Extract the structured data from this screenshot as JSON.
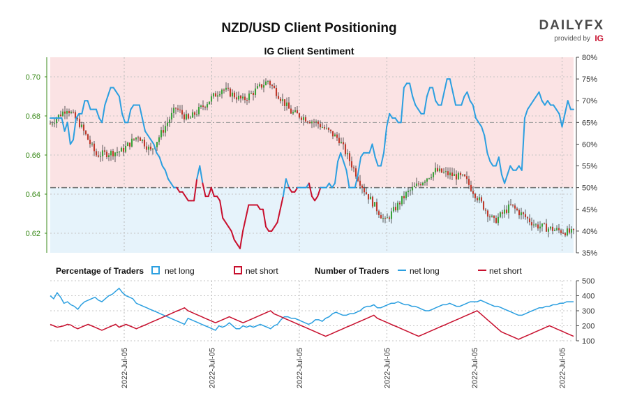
{
  "chart_data": {
    "type": "candlestick+line",
    "title": "NZD/USD Client Positioning",
    "subtitle": "IG Client Sentiment",
    "brand": {
      "name": "DAILYFX",
      "tagline": "provided by",
      "logo": "IG"
    },
    "colors": {
      "long": "#2b9fe0",
      "short": "#c8102e",
      "candle_up": "#3aa33a",
      "candle_down": "#c0392b",
      "long_zone": "#e6f3fb",
      "short_zone": "#fbe3e4",
      "left_axis": "#3a8a1a"
    },
    "x_tick_labels": [
      "2022-Jul-05",
      "2022-Jul-05",
      "2022-Jul-05",
      "2022-Jul-05",
      "2022-Jul-05",
      "2022-Jul-05"
    ],
    "price_axis": {
      "ticks": [
        0.62,
        0.64,
        0.66,
        0.68,
        0.7
      ],
      "ylim": [
        0.61,
        0.71
      ]
    },
    "sentiment_axis": {
      "ticks": [
        "35%",
        "40%",
        "45%",
        "50%",
        "55%",
        "60%",
        "65%",
        "70%",
        "75%",
        "80%"
      ],
      "ylim": [
        35,
        80
      ]
    },
    "traders_axis": {
      "ticks": [
        100,
        200,
        300,
        400,
        500
      ],
      "ylim": [
        100,
        500
      ]
    },
    "reference_levels": {
      "sentiment_mid": 50,
      "sentiment_upper": 65
    },
    "legend": {
      "percentage_title": "Percentage of Traders",
      "number_title": "Number of Traders",
      "net_long": "net long",
      "net_short": "net short"
    },
    "net_long_pct": [
      66,
      66,
      66,
      66,
      66,
      63,
      65,
      60,
      61,
      66,
      67,
      67,
      70,
      70,
      68,
      68,
      68,
      66,
      65,
      69,
      71,
      73,
      73,
      72,
      71,
      67,
      65,
      65,
      68,
      69,
      69,
      69,
      66,
      63,
      62,
      61,
      60,
      58,
      57,
      55,
      54,
      52,
      51,
      50,
      50,
      49,
      49,
      48,
      47,
      47,
      47,
      52,
      55,
      51,
      48,
      48,
      50,
      48,
      48,
      47,
      43,
      42,
      41,
      40,
      38,
      37,
      36,
      40,
      43,
      46,
      46,
      46,
      46,
      45,
      45,
      41,
      40,
      40,
      41,
      42,
      45,
      48,
      52,
      50,
      49,
      49,
      50,
      50,
      50,
      50,
      51,
      48,
      47,
      48,
      50,
      50,
      50,
      51,
      50,
      51,
      56,
      58,
      56,
      54,
      50,
      50,
      50,
      53,
      57,
      58,
      58,
      58,
      60,
      57,
      55,
      55,
      58,
      64,
      67,
      66,
      66,
      65,
      65,
      73,
      74,
      74,
      71,
      69,
      68,
      67,
      67,
      71,
      73,
      73,
      70,
      69,
      69,
      72,
      75,
      75,
      72,
      69,
      69,
      69,
      71,
      72,
      70,
      69,
      66,
      65,
      64,
      62,
      58,
      56,
      55,
      55,
      57,
      53,
      51,
      53,
      55,
      54,
      54,
      55,
      54,
      66,
      68,
      69,
      70,
      71,
      72,
      70,
      69,
      70,
      69,
      69,
      68,
      67,
      64,
      67,
      70,
      68,
      68
    ],
    "net_long_count": [
      400,
      380,
      420,
      390,
      350,
      360,
      340,
      330,
      310,
      340,
      360,
      370,
      380,
      390,
      370,
      360,
      380,
      400,
      410,
      430,
      450,
      420,
      400,
      390,
      380,
      350,
      340,
      330,
      320,
      310,
      300,
      290,
      280,
      270,
      260,
      250,
      240,
      230,
      220,
      210,
      250,
      240,
      230,
      220,
      210,
      200,
      190,
      180,
      170,
      200,
      190,
      200,
      220,
      200,
      180,
      180,
      200,
      190,
      200,
      190,
      200,
      210,
      200,
      190,
      180,
      200,
      210,
      240,
      260,
      260,
      250,
      250,
      240,
      230,
      220,
      210,
      220,
      240,
      240,
      230,
      250,
      260,
      280,
      290,
      280,
      270,
      270,
      280,
      280,
      290,
      300,
      320,
      330,
      330,
      340,
      320,
      320,
      330,
      340,
      350,
      350,
      360,
      350,
      340,
      340,
      330,
      330,
      320,
      310,
      300,
      300,
      310,
      320,
      330,
      340,
      340,
      350,
      340,
      330,
      330,
      340,
      350,
      360,
      360,
      360,
      370,
      360,
      350,
      340,
      330,
      330,
      320,
      310,
      300,
      290,
      280,
      270,
      270,
      280,
      290,
      300,
      310,
      320,
      320,
      330,
      330,
      340,
      340,
      350,
      350,
      360,
      360,
      360
    ],
    "net_short_count": [
      210,
      200,
      190,
      195,
      200,
      210,
      205,
      190,
      180,
      190,
      200,
      210,
      200,
      190,
      180,
      170,
      180,
      190,
      200,
      210,
      190,
      200,
      210,
      200,
      190,
      180,
      190,
      200,
      210,
      220,
      230,
      240,
      250,
      260,
      270,
      280,
      290,
      300,
      310,
      320,
      300,
      290,
      280,
      270,
      260,
      250,
      240,
      230,
      220,
      230,
      240,
      250,
      260,
      250,
      240,
      230,
      220,
      230,
      240,
      250,
      260,
      270,
      280,
      290,
      300,
      280,
      270,
      260,
      250,
      240,
      230,
      220,
      210,
      200,
      190,
      180,
      170,
      160,
      150,
      140,
      130,
      140,
      150,
      160,
      170,
      180,
      190,
      200,
      210,
      220,
      230,
      240,
      250,
      260,
      270,
      250,
      240,
      230,
      220,
      210,
      200,
      190,
      180,
      170,
      160,
      150,
      140,
      130,
      140,
      150,
      160,
      170,
      180,
      190,
      200,
      210,
      220,
      230,
      240,
      250,
      260,
      270,
      280,
      290,
      300,
      280,
      260,
      240,
      220,
      200,
      180,
      160,
      150,
      140,
      130,
      120,
      110,
      120,
      130,
      140,
      150,
      160,
      170,
      180,
      190,
      200,
      190,
      180,
      170,
      160,
      150,
      140,
      130
    ]
  }
}
